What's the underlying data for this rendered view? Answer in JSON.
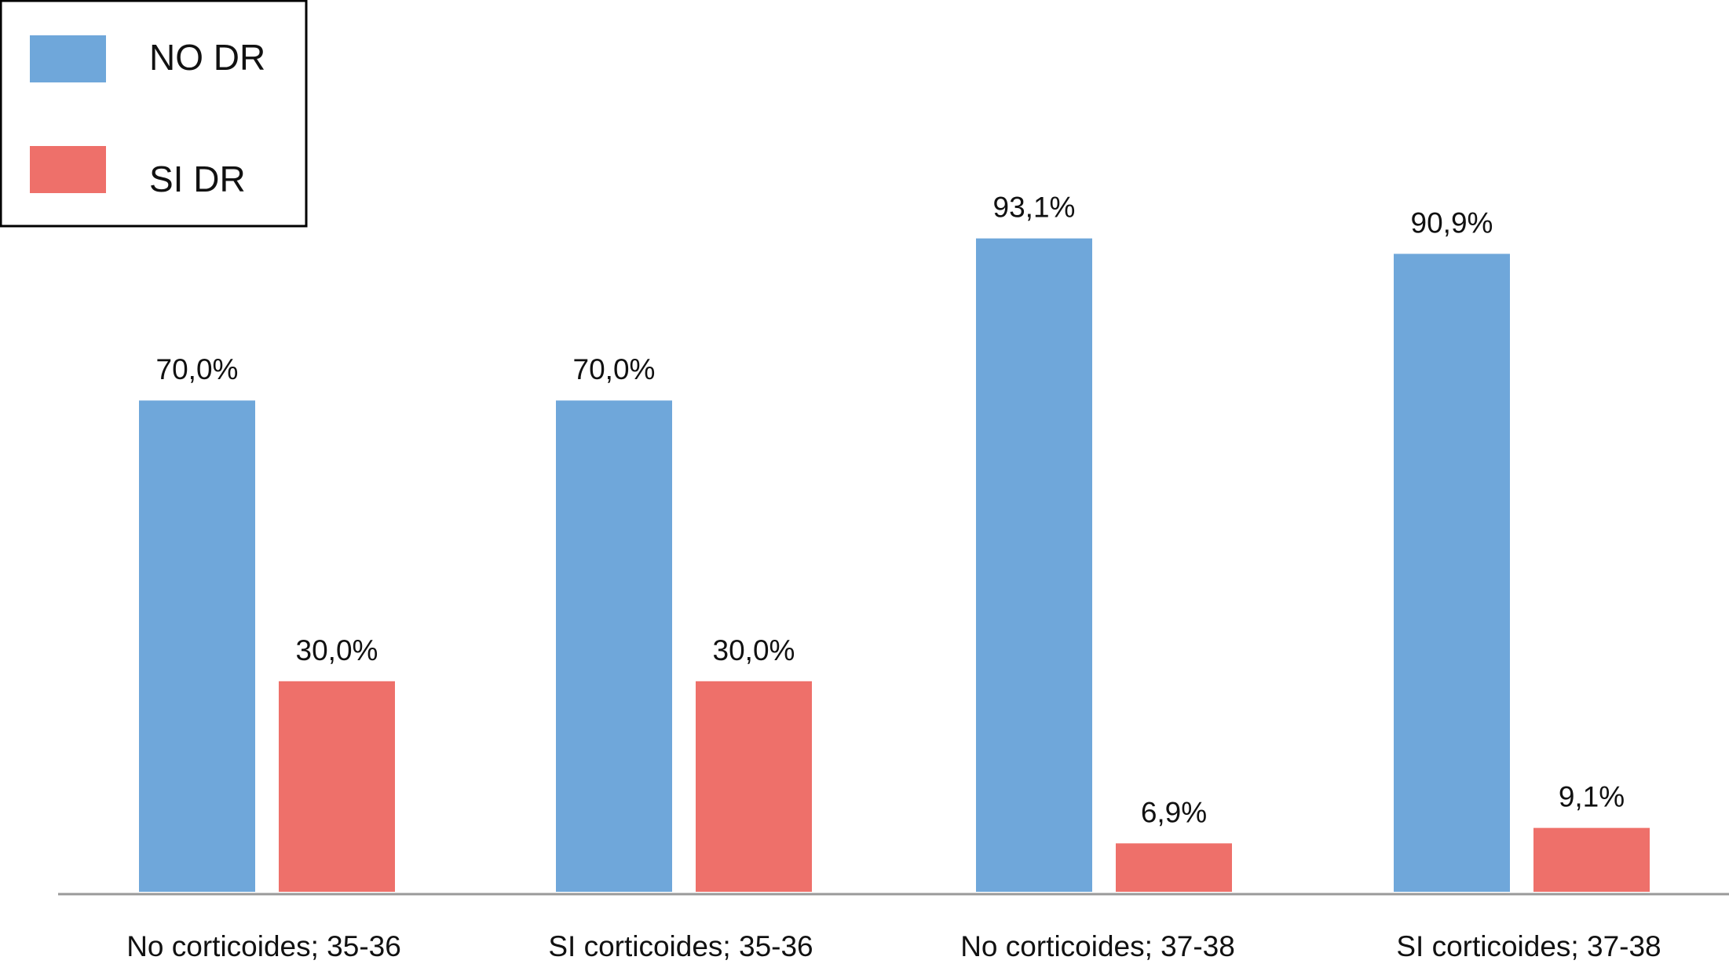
{
  "chart_data": {
    "type": "bar",
    "categories": [
      "No corticoides; 35-36",
      "SI corticoides; 35-36",
      "No corticoides; 37-38",
      "SI corticoides; 37-38"
    ],
    "series": [
      {
        "name": "NO DR",
        "color": "#6fa7da",
        "values": [
          70.0,
          70.0,
          93.1,
          90.9
        ],
        "labels": [
          "70,0%",
          "70,0%",
          "93,1%",
          "90,9%"
        ]
      },
      {
        "name": "SI DR",
        "color": "#ee706a",
        "values": [
          30.0,
          30.0,
          6.9,
          9.1
        ],
        "labels": [
          "30,0%",
          "30,0%",
          "6,9%",
          "9,1%"
        ]
      }
    ],
    "legend_position": "top-left",
    "grid": false,
    "ylim": [
      0,
      100
    ]
  }
}
